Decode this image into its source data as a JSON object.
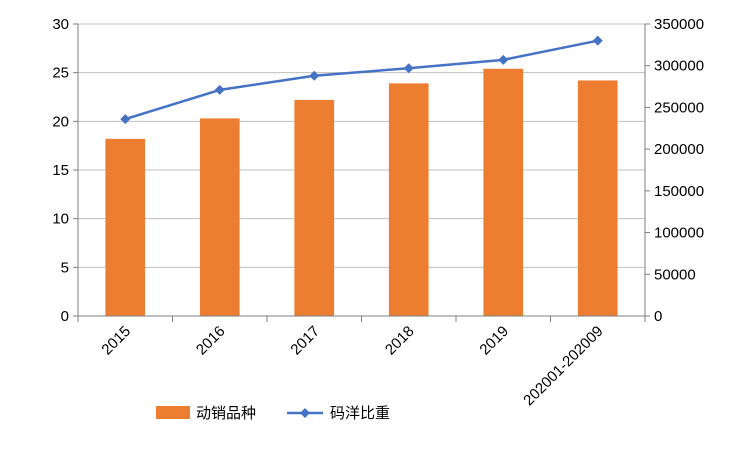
{
  "chart_data": {
    "type": "bar",
    "title": "",
    "categories": [
      "2015",
      "2016",
      "2017",
      "2018",
      "2019",
      "202001-202009"
    ],
    "series": [
      {
        "name": "动销品种",
        "type": "bar",
        "axis": "left",
        "color": "#ED7D31",
        "values": [
          18.2,
          20.3,
          22.2,
          23.9,
          25.4,
          24.2
        ]
      },
      {
        "name": "码洋比重",
        "type": "line",
        "axis": "right",
        "color": "#4472C4",
        "marker": "diamond",
        "values": [
          236000,
          271000,
          288000,
          297000,
          307000,
          330000
        ]
      }
    ],
    "y_left": {
      "min": 0,
      "max": 30,
      "step": 5,
      "ticks": [
        "0",
        "5",
        "10",
        "15",
        "20",
        "25",
        "30"
      ]
    },
    "y_right": {
      "min": 0,
      "max": 350000,
      "step": 50000,
      "ticks": [
        "0",
        "50000",
        "100000",
        "150000",
        "200000",
        "250000",
        "300000",
        "350000"
      ]
    },
    "grid": true,
    "legend_position": "bottom-left"
  }
}
